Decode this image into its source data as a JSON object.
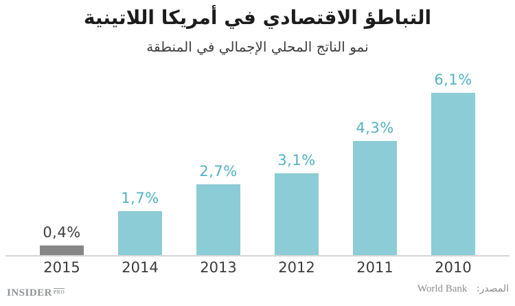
{
  "header": {
    "title": "التباطؤ الاقتصادي في أمريكا اللاتينية",
    "subtitle": "نمو الناتج المحلي الإجمالي في المنطقة"
  },
  "footer": {
    "logo_text": "INSIDER",
    "logo_badge": "PRO",
    "source_label": "المصدر:",
    "source_value": "World Bank"
  },
  "chart_data": {
    "type": "bar",
    "title": "التباطؤ الاقتصادي في أمريكا اللاتينية",
    "subtitle": "نمو الناتج المحلي الإجمالي في المنطقة",
    "categories": [
      "2015",
      "2014",
      "2013",
      "2012",
      "2011",
      "2010"
    ],
    "values": [
      0.4,
      1.7,
      2.7,
      3.1,
      4.3,
      6.1
    ],
    "value_labels": [
      "0,4%",
      "1,7%",
      "2,7%",
      "3,1%",
      "4,3%",
      "6,1%"
    ],
    "bar_colors": [
      "#878787",
      "#8cccd6",
      "#8cccd6",
      "#8cccd6",
      "#8cccd6",
      "#8cccd6"
    ],
    "label_colors": [
      "#3d3d3d",
      "#50b2c1",
      "#50b2c1",
      "#50b2c1",
      "#50b2c1",
      "#50b2c1"
    ],
    "xlabel": "",
    "ylabel": "",
    "ylim": [
      0,
      7
    ],
    "grid": false,
    "legend": false,
    "orientation": "vertical",
    "axis_line_color": "#d6d6d6",
    "background_color": "#ffffff"
  }
}
